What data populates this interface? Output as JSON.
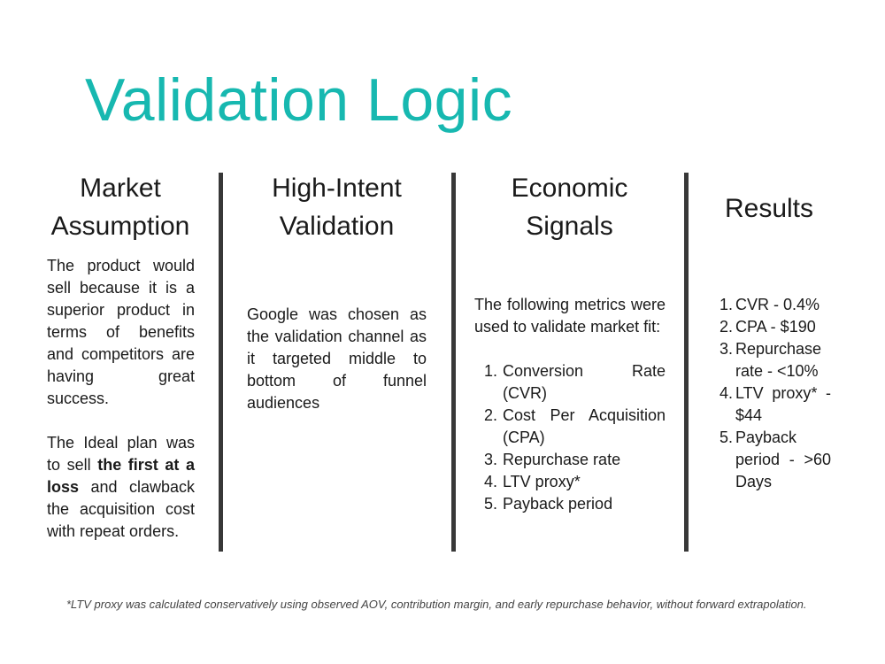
{
  "title": "Validation Logic",
  "columns": [
    {
      "heading_line1": "Market",
      "heading_line2": "Assumption",
      "para1": "The product would sell because it is a superior product in terms of benefits and competitors are having great success.",
      "para2_pre": "The Ideal plan was to sell ",
      "para2_bold": "the first at a loss",
      "para2_post": " and clawback the acquisition cost with repeat orders."
    },
    {
      "heading_line1": "High-Intent",
      "heading_line2": "Validation",
      "para1": "Google was chosen as the validation channel as it targeted middle to bottom of funnel audiences"
    },
    {
      "heading_line1": "Economic",
      "heading_line2": "Signals",
      "para1": "The following metrics were used to validate market fit:",
      "items": [
        {
          "num": "1.",
          "text": "Conversion Rate (CVR)"
        },
        {
          "num": "2.",
          "text": "Cost Per Acquisition (CPA)"
        },
        {
          "num": "3.",
          "text": "Repurchase rate"
        },
        {
          "num": "4.",
          "text": "LTV proxy*"
        },
        {
          "num": "5.",
          "text": "Payback period"
        }
      ]
    },
    {
      "heading_line1": "Results",
      "items": [
        {
          "num": "1.",
          "text": "CVR - 0.4%"
        },
        {
          "num": "2.",
          "text": "CPA - $190"
        },
        {
          "num": "3.",
          "text": "Repurchase rate - <10%"
        },
        {
          "num": "4.",
          "text": "LTV proxy* - $44"
        },
        {
          "num": "5.",
          "text": "Payback period - >60 Days"
        }
      ]
    }
  ],
  "footnote": "*LTV proxy was calculated conservatively using observed AOV, contribution margin, and early repurchase behavior, without forward extrapolation.",
  "colors": {
    "title": "#17b8b0",
    "divider": "#383838",
    "text": "#1a1a1a"
  }
}
